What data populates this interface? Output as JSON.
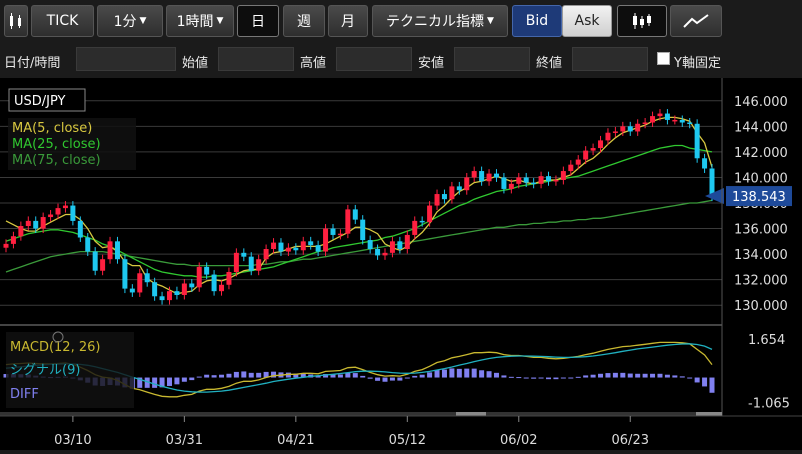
{
  "toolbar": {
    "candle_icon": "candlestick-icon",
    "tick_label": "TICK",
    "interval_label": "1分",
    "timeframe_label": "1時間",
    "day_label": "日",
    "week_label": "週",
    "month_label": "月",
    "technical_label": "テクニカル指標",
    "bid_label": "Bid",
    "ask_label": "Ask",
    "candle_chart_icon": "candlestick-chart-icon",
    "line_chart_icon": "line-chart-icon"
  },
  "info_row": {
    "datetime_label": "日付/時間",
    "open_label": "始値",
    "high_label": "高値",
    "low_label": "安値",
    "close_label": "終値",
    "yaxis_fix_label": "Y軸固定"
  },
  "colors": {
    "up_candle": "#ff2040",
    "down_candle": "#1ec8f0",
    "ma5": "#d8c840",
    "ma25": "#30c830",
    "ma75": "#3a9a3a",
    "macd": "#c8b830",
    "signal": "#20b0c0",
    "diff": "#8080f0",
    "current_price_marker": "#1e4a9a"
  },
  "chart_data": [
    {
      "type": "candlestick",
      "symbol": "USD/JPY",
      "legend": [
        "MA(5, close)",
        "MA(25, close)",
        "MA(75, close)"
      ],
      "ylim": [
        129,
        147
      ],
      "yticks": [
        "146.000",
        "144.000",
        "142.000",
        "140.000",
        "138.000",
        "136.000",
        "134.000",
        "132.000",
        "130.000"
      ],
      "yvalues": [
        146,
        144,
        142,
        140,
        138,
        136,
        134,
        132,
        130
      ],
      "current_price": "138.543",
      "current_price_value": 138.543,
      "xticks": [
        "03/10",
        "03/31",
        "04/21",
        "05/12",
        "06/02",
        "06/23"
      ],
      "xtick_index": [
        9,
        24,
        39,
        54,
        69,
        84
      ],
      "series": [
        {
          "name": "close",
          "values": [
            134.8,
            135.4,
            136.2,
            136.6,
            136.0,
            136.9,
            137.1,
            137.6,
            137.8,
            136.6,
            135.3,
            134.2,
            132.7,
            133.6,
            135.0,
            133.6,
            131.3,
            131.0,
            132.5,
            131.8,
            130.7,
            130.4,
            131.1,
            130.8,
            131.7,
            131.4,
            133.0,
            132.4,
            131.1,
            131.6,
            132.6,
            134.1,
            133.8,
            132.7,
            133.6,
            134.4,
            134.9,
            134.2,
            134.5,
            134.3,
            135.0,
            134.7,
            134.2,
            136.0,
            135.5,
            135.6,
            137.5,
            136.7,
            135.1,
            134.4,
            133.9,
            134.1,
            135.0,
            134.4,
            135.5,
            136.6,
            136.5,
            137.8,
            138.7,
            138.3,
            139.3,
            139.0,
            140.0,
            140.5,
            139.7,
            140.3,
            140.0,
            139.1,
            139.5,
            140.0,
            139.6,
            139.5,
            140.1,
            139.7,
            139.8,
            140.5,
            141.0,
            141.4,
            142.1,
            142.3,
            142.9,
            143.5,
            143.6,
            144.0,
            143.6,
            144.2,
            144.3,
            144.8,
            145.0,
            144.5,
            144.5,
            144.3,
            144.2,
            141.5,
            140.7,
            138.5
          ]
        },
        {
          "name": "MA(5, close)",
          "values": [
            136.6,
            136.3,
            136.0,
            135.8,
            135.8,
            136.2,
            136.5,
            136.8,
            137.1,
            137.1,
            136.7,
            136.0,
            135.0,
            134.5,
            134.6,
            134.2,
            133.4,
            133.1,
            133.1,
            132.1,
            131.7,
            131.5,
            131.2,
            130.9,
            131.0,
            131.1,
            131.6,
            131.9,
            132.0,
            131.9,
            132.1,
            132.4,
            132.7,
            132.8,
            132.8,
            133.7,
            134.1,
            134.2,
            134.4,
            134.6,
            134.6,
            134.6,
            134.6,
            134.8,
            135.1,
            135.4,
            135.7,
            136.1,
            136.1,
            135.9,
            135.6,
            134.8,
            134.5,
            134.3,
            134.6,
            135.2,
            135.7,
            136.4,
            137.3,
            137.8,
            138.4,
            138.9,
            139.2,
            139.6,
            139.7,
            139.9,
            140.1,
            139.9,
            139.7,
            139.8,
            139.6,
            139.5,
            139.7,
            139.8,
            139.8,
            140.0,
            140.2,
            140.7,
            141.2,
            141.5,
            142.0,
            142.6,
            143.1,
            143.5,
            143.7,
            143.9,
            144.1,
            144.4,
            144.6,
            144.7,
            144.7,
            144.6,
            144.4,
            143.5,
            142.7,
            140.8
          ]
        },
        {
          "name": "MA(25, close)",
          "values": [
            135.0,
            135.2,
            135.4,
            135.6,
            135.7,
            135.8,
            135.9,
            135.9,
            135.8,
            135.7,
            135.5,
            135.3,
            135.1,
            134.8,
            134.6,
            134.3,
            134.0,
            133.7,
            133.4,
            133.1,
            132.8,
            132.6,
            132.5,
            132.4,
            132.3,
            132.3,
            132.2,
            132.2,
            132.3,
            132.3,
            132.4,
            132.5,
            132.6,
            132.7,
            132.8,
            132.9,
            133.0,
            133.2,
            133.4,
            133.6,
            133.8,
            134.0,
            134.2,
            134.3,
            134.5,
            134.6,
            134.7,
            134.8,
            134.9,
            135.0,
            135.1,
            135.3,
            135.4,
            135.6,
            135.8,
            136.0,
            136.3,
            136.6,
            136.9,
            137.2,
            137.5,
            137.8,
            138.0,
            138.3,
            138.5,
            138.7,
            138.9,
            139.0,
            139.1,
            139.3,
            139.4,
            139.5,
            139.6,
            139.7,
            139.8,
            139.9,
            140.0,
            140.1,
            140.3,
            140.5,
            140.7,
            140.9,
            141.1,
            141.3,
            141.5,
            141.7,
            141.9,
            142.1,
            142.3,
            142.4,
            142.5,
            142.5,
            142.3,
            142.2,
            142.1,
            142.0
          ]
        },
        {
          "name": "MA(75, close)",
          "values": [
            132.6,
            132.8,
            133.0,
            133.2,
            133.4,
            133.6,
            133.8,
            133.9,
            134.0,
            134.1,
            134.2,
            134.2,
            134.2,
            134.2,
            134.1,
            134.0,
            133.9,
            133.8,
            133.7,
            133.6,
            133.5,
            133.4,
            133.3,
            133.2,
            133.2,
            133.1,
            133.1,
            133.1,
            133.1,
            133.1,
            133.1,
            133.1,
            133.1,
            133.1,
            133.2,
            133.2,
            133.3,
            133.4,
            133.4,
            133.5,
            133.6,
            133.6,
            133.7,
            133.8,
            133.9,
            134.0,
            134.1,
            134.2,
            134.3,
            134.4,
            134.5,
            134.6,
            134.7,
            134.8,
            134.9,
            135.0,
            135.1,
            135.2,
            135.3,
            135.4,
            135.5,
            135.6,
            135.7,
            135.8,
            135.9,
            136.0,
            136.1,
            136.1,
            136.2,
            136.3,
            136.3,
            136.4,
            136.4,
            136.5,
            136.5,
            136.6,
            136.6,
            136.7,
            136.7,
            136.8,
            136.8,
            136.9,
            137.0,
            137.1,
            137.2,
            137.3,
            137.4,
            137.5,
            137.6,
            137.7,
            137.8,
            137.9,
            138.0,
            138.0,
            138.1,
            138.2
          ]
        }
      ]
    },
    {
      "type": "macd",
      "legend": [
        "MACD(12, 26)",
        "シグナル(9)",
        "DIFF"
      ],
      "ylim": [
        -1.3,
        1.9
      ],
      "yticks": [
        "1.654",
        "-1.065"
      ],
      "yvalues": [
        1.654,
        -1.065
      ],
      "series": [
        {
          "name": "MACD(12, 26)",
          "values": [
            0.55,
            0.58,
            0.6,
            0.62,
            0.6,
            0.58,
            0.58,
            0.6,
            0.62,
            0.56,
            0.44,
            0.3,
            0.12,
            0.02,
            -0.02,
            -0.12,
            -0.3,
            -0.46,
            -0.52,
            -0.62,
            -0.72,
            -0.8,
            -0.82,
            -0.82,
            -0.76,
            -0.72,
            -0.58,
            -0.5,
            -0.5,
            -0.46,
            -0.38,
            -0.24,
            -0.16,
            -0.16,
            -0.1,
            0.0,
            0.08,
            0.1,
            0.14,
            0.14,
            0.18,
            0.18,
            0.16,
            0.26,
            0.28,
            0.3,
            0.42,
            0.44,
            0.34,
            0.22,
            0.12,
            0.06,
            0.08,
            0.06,
            0.14,
            0.26,
            0.34,
            0.48,
            0.64,
            0.72,
            0.84,
            0.9,
            0.98,
            1.06,
            1.06,
            1.08,
            1.06,
            0.98,
            0.94,
            0.94,
            0.9,
            0.86,
            0.86,
            0.82,
            0.8,
            0.82,
            0.86,
            0.9,
            0.98,
            1.04,
            1.12,
            1.2,
            1.26,
            1.32,
            1.34,
            1.38,
            1.42,
            1.46,
            1.5,
            1.5,
            1.5,
            1.48,
            1.44,
            1.2,
            0.96,
            0.55
          ]
        },
        {
          "name": "シグナル(9)",
          "values": [
            0.4,
            0.43,
            0.46,
            0.49,
            0.52,
            0.54,
            0.56,
            0.57,
            0.58,
            0.58,
            0.56,
            0.52,
            0.46,
            0.38,
            0.3,
            0.22,
            0.12,
            0.02,
            -0.08,
            -0.18,
            -0.28,
            -0.38,
            -0.46,
            -0.53,
            -0.58,
            -0.61,
            -0.62,
            -0.62,
            -0.6,
            -0.58,
            -0.54,
            -0.48,
            -0.42,
            -0.36,
            -0.3,
            -0.24,
            -0.17,
            -0.12,
            -0.07,
            -0.03,
            0.01,
            0.05,
            0.08,
            0.11,
            0.14,
            0.17,
            0.21,
            0.25,
            0.27,
            0.27,
            0.26,
            0.24,
            0.21,
            0.19,
            0.18,
            0.19,
            0.22,
            0.26,
            0.32,
            0.38,
            0.45,
            0.53,
            0.6,
            0.68,
            0.75,
            0.81,
            0.86,
            0.89,
            0.91,
            0.92,
            0.92,
            0.91,
            0.9,
            0.89,
            0.87,
            0.86,
            0.86,
            0.87,
            0.89,
            0.92,
            0.96,
            1.01,
            1.06,
            1.12,
            1.17,
            1.22,
            1.26,
            1.3,
            1.34,
            1.38,
            1.41,
            1.43,
            1.44,
            1.41,
            1.34,
            1.2
          ]
        }
      ]
    }
  ]
}
